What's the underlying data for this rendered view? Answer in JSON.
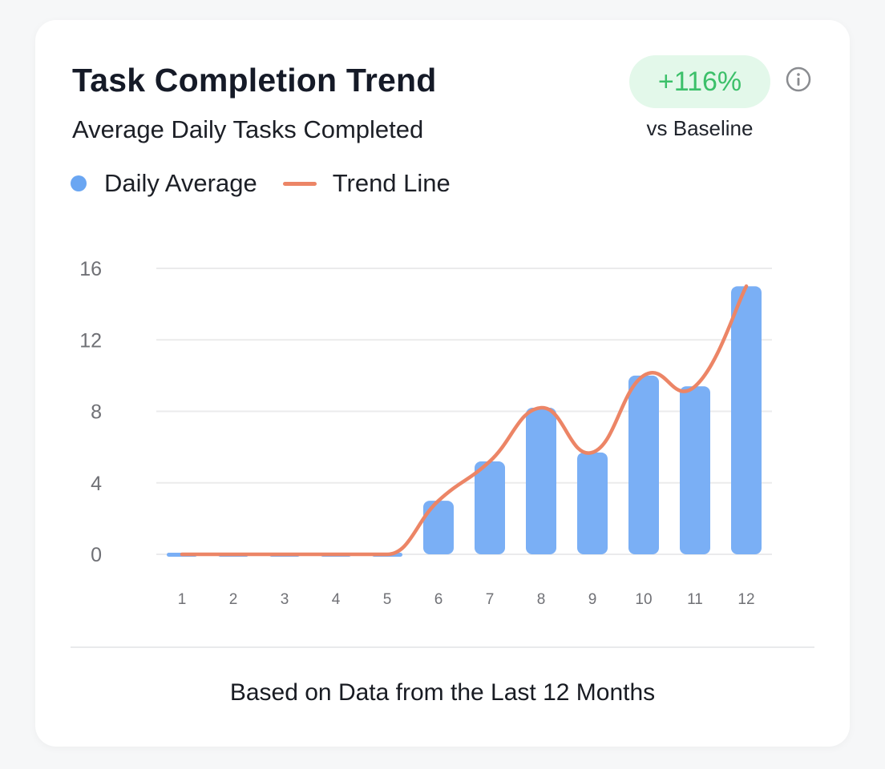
{
  "card": {
    "title": "Task Completion Trend",
    "subtitle": "Average Daily Tasks Completed",
    "badge": {
      "value": "+116%",
      "caption": "vs Baseline",
      "color": "#3cc06a",
      "background": "#e3f8ea"
    },
    "info_icon": "info-circle-icon",
    "legend": [
      {
        "label": "Daily Average",
        "marker": "dot",
        "color": "#6aa6f2"
      },
      {
        "label": "Trend Line",
        "marker": "line",
        "color": "#ec8566"
      }
    ],
    "footer": "Based on Data from the Last 12 Months"
  },
  "chart_data": {
    "type": "bar",
    "title": "Task Completion Trend",
    "subtitle": "Average Daily Tasks Completed",
    "xlabel": "",
    "ylabel": "",
    "categories": [
      "1",
      "2",
      "3",
      "4",
      "5",
      "6",
      "7",
      "8",
      "9",
      "10",
      "11",
      "12"
    ],
    "series": [
      {
        "name": "Daily Average",
        "type": "bar",
        "color": "#7aaff5",
        "values": [
          0,
          0,
          0,
          0,
          0,
          3.0,
          5.2,
          8.2,
          5.7,
          10.0,
          9.4,
          15.0
        ]
      },
      {
        "name": "Trend Line",
        "type": "line",
        "smooth": true,
        "color": "#ec8566",
        "values": [
          0,
          0,
          0,
          0,
          0,
          3.0,
          5.2,
          8.2,
          5.7,
          10.0,
          9.4,
          15.0
        ]
      }
    ],
    "yticks": [
      0,
      4,
      8,
      12,
      16
    ],
    "ylim": [
      0,
      16
    ],
    "grid": true,
    "legend_position": "top-left"
  }
}
